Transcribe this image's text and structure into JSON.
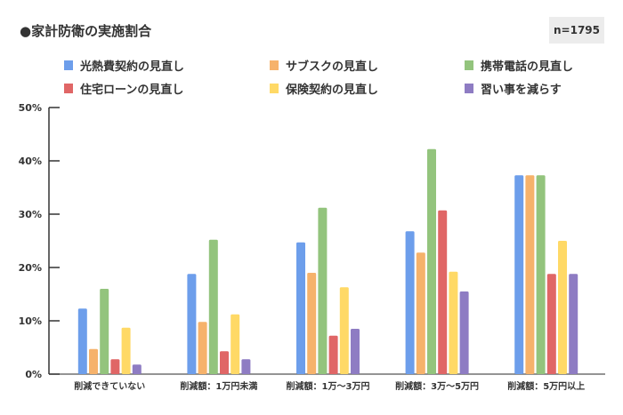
{
  "chart_data": {
    "type": "bar",
    "title": "●家計防衛の実施割合",
    "note": "n=1795",
    "categories": [
      "削減できていない",
      "削減額：1万円未満",
      "削減額：1万～3万円",
      "削減額：3万～5万円",
      "削減額：5万円以上"
    ],
    "series": [
      {
        "name": "光熱費契約の見直し",
        "color": "#6d9eeb",
        "values": [
          12.3,
          18.8,
          24.7,
          26.8,
          37.3
        ]
      },
      {
        "name": "サブスクの見直し",
        "color": "#f6b26b",
        "values": [
          4.7,
          9.8,
          19.0,
          22.8,
          37.3
        ]
      },
      {
        "name": "携帯電話の見直し",
        "color": "#93c47d",
        "values": [
          16.0,
          25.2,
          31.2,
          42.2,
          37.3
        ]
      },
      {
        "name": "住宅ローンの見直し",
        "color": "#e06666",
        "values": [
          2.8,
          4.3,
          7.2,
          30.7,
          18.8
        ]
      },
      {
        "name": "保険契約の見直し",
        "color": "#ffd966",
        "values": [
          8.7,
          11.2,
          16.3,
          19.2,
          25.0
        ]
      },
      {
        "name": "習い事を減らす",
        "color": "#8e7cc3",
        "values": [
          1.8,
          2.8,
          8.5,
          15.5,
          18.8
        ]
      }
    ],
    "yticks": [
      "0%",
      "10%",
      "20%",
      "30%",
      "40%",
      "50%"
    ],
    "ylim": [
      0,
      50
    ],
    "grid": false,
    "legend_position": "top"
  }
}
